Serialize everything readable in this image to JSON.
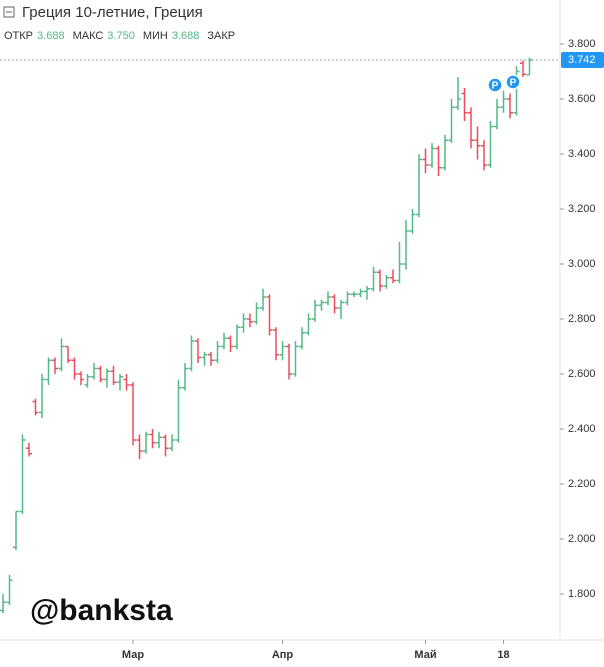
{
  "chart_data": {
    "type": "ohlc",
    "title": "Греция 10-летние, Греция",
    "legend_fields": [
      "ОТКР",
      "3.688",
      "МАКС",
      "3.750",
      "МИН",
      "3.688",
      "ЗАКР"
    ],
    "watermark": "@banksta",
    "event_labels": [
      "P",
      "P"
    ],
    "up_color": "#53b987",
    "down_color": "#eb4d5c",
    "last_price_color": "#2196f3",
    "categories": [
      null,
      null,
      null,
      null,
      null,
      null,
      null,
      null,
      null,
      null,
      null,
      null,
      null,
      null,
      null,
      null,
      null,
      null,
      null,
      null,
      "Мар",
      null,
      null,
      null,
      null,
      null,
      null,
      null,
      null,
      null,
      null,
      null,
      null,
      null,
      null,
      null,
      null,
      null,
      null,
      null,
      null,
      null,
      null,
      "Апр",
      null,
      null,
      null,
      null,
      null,
      null,
      null,
      null,
      null,
      null,
      null,
      null,
      null,
      null,
      null,
      null,
      null,
      null,
      null,
      null,
      null,
      "Май",
      null,
      null,
      null,
      null,
      null,
      null,
      null,
      null,
      null,
      null,
      null,
      "18",
      null,
      null,
      null,
      null
    ],
    "open": [
      1.74,
      1.77,
      1.97,
      2.1,
      2.33,
      2.5,
      2.46,
      2.58,
      2.65,
      2.62,
      2.7,
      2.65,
      2.6,
      2.56,
      2.59,
      2.62,
      2.58,
      2.61,
      2.57,
      2.58,
      2.56,
      2.36,
      2.32,
      2.38,
      2.35,
      2.37,
      2.33,
      2.36,
      2.55,
      2.62,
      2.72,
      2.66,
      2.67,
      2.65,
      2.7,
      2.73,
      2.7,
      2.77,
      2.8,
      2.79,
      2.84,
      2.88,
      2.76,
      2.67,
      2.7,
      2.6,
      2.7,
      2.75,
      2.8,
      2.85,
      2.86,
      2.88,
      2.84,
      2.86,
      2.89,
      2.89,
      2.9,
      2.91,
      2.97,
      2.92,
      2.95,
      2.94,
      3.0,
      3.12,
      3.18,
      3.38,
      3.36,
      3.42,
      3.35,
      3.45,
      3.57,
      3.62,
      3.55,
      3.45,
      3.43,
      3.36,
      3.5,
      3.57,
      3.6,
      3.55,
      3.73,
      3.688
    ],
    "high": [
      1.8,
      1.87,
      2.1,
      2.38,
      2.35,
      2.51,
      2.6,
      2.66,
      2.66,
      2.73,
      2.7,
      2.66,
      2.61,
      2.6,
      2.64,
      2.63,
      2.62,
      2.63,
      2.6,
      2.6,
      2.57,
      2.38,
      2.39,
      2.4,
      2.39,
      2.38,
      2.38,
      2.58,
      2.64,
      2.74,
      2.73,
      2.68,
      2.68,
      2.72,
      2.75,
      2.74,
      2.78,
      2.82,
      2.82,
      2.86,
      2.91,
      2.89,
      2.77,
      2.72,
      2.71,
      2.72,
      2.77,
      2.82,
      2.87,
      2.87,
      2.9,
      2.89,
      2.87,
      2.9,
      2.9,
      2.91,
      2.92,
      2.99,
      2.98,
      2.96,
      2.98,
      3.08,
      3.16,
      3.2,
      3.4,
      3.42,
      3.44,
      3.43,
      3.47,
      3.6,
      3.68,
      3.64,
      3.57,
      3.5,
      3.45,
      3.52,
      3.6,
      3.63,
      3.62,
      3.72,
      3.74,
      3.75
    ],
    "low": [
      1.73,
      1.76,
      1.96,
      2.09,
      2.3,
      2.45,
      2.44,
      2.56,
      2.6,
      2.61,
      2.64,
      2.58,
      2.56,
      2.55,
      2.58,
      2.57,
      2.55,
      2.56,
      2.54,
      2.54,
      2.34,
      2.29,
      2.31,
      2.33,
      2.33,
      2.3,
      2.32,
      2.35,
      2.54,
      2.61,
      2.64,
      2.63,
      2.63,
      2.64,
      2.69,
      2.68,
      2.69,
      2.75,
      2.77,
      2.78,
      2.83,
      2.74,
      2.65,
      2.65,
      2.58,
      2.59,
      2.69,
      2.74,
      2.79,
      2.83,
      2.85,
      2.82,
      2.8,
      2.85,
      2.88,
      2.88,
      2.87,
      2.9,
      2.9,
      2.91,
      2.93,
      2.93,
      2.98,
      3.11,
      3.17,
      3.33,
      3.35,
      3.32,
      3.34,
      3.44,
      3.56,
      3.52,
      3.42,
      3.38,
      3.34,
      3.35,
      3.49,
      3.55,
      3.53,
      3.54,
      3.68,
      3.688
    ],
    "close": [
      1.77,
      1.85,
      2.1,
      2.36,
      2.31,
      2.46,
      2.58,
      2.65,
      2.62,
      2.7,
      2.65,
      2.6,
      2.58,
      2.59,
      2.62,
      2.58,
      2.61,
      2.57,
      2.59,
      2.56,
      2.36,
      2.32,
      2.38,
      2.35,
      2.37,
      2.33,
      2.36,
      2.55,
      2.62,
      2.72,
      2.66,
      2.67,
      2.65,
      2.7,
      2.73,
      2.7,
      2.77,
      2.8,
      2.79,
      2.84,
      2.88,
      2.76,
      2.67,
      2.7,
      2.6,
      2.7,
      2.75,
      2.8,
      2.85,
      2.86,
      2.88,
      2.84,
      2.86,
      2.89,
      2.89,
      2.9,
      2.91,
      2.97,
      2.92,
      2.95,
      2.94,
      3.0,
      3.12,
      3.18,
      3.38,
      3.36,
      3.42,
      3.35,
      3.45,
      3.57,
      3.6,
      3.55,
      3.45,
      3.43,
      3.36,
      3.5,
      3.57,
      3.6,
      3.55,
      3.7,
      3.69,
      3.742
    ],
    "ylim": [
      1.64,
      3.96
    ],
    "yticks": [
      {
        "value": 1.8,
        "label": "1.800"
      },
      {
        "value": 2.0,
        "label": "2.000"
      },
      {
        "value": 2.2,
        "label": "2.200"
      },
      {
        "value": 2.4,
        "label": "2.400"
      },
      {
        "value": 2.6,
        "label": "2.600"
      },
      {
        "value": 2.8,
        "label": "2.800"
      },
      {
        "value": 3.0,
        "label": "3.000"
      },
      {
        "value": 3.2,
        "label": "3.200"
      },
      {
        "value": 3.4,
        "label": "3.400"
      },
      {
        "value": 3.6,
        "label": "3.600"
      },
      {
        "value": 3.8,
        "label": "3.800"
      }
    ]
  }
}
